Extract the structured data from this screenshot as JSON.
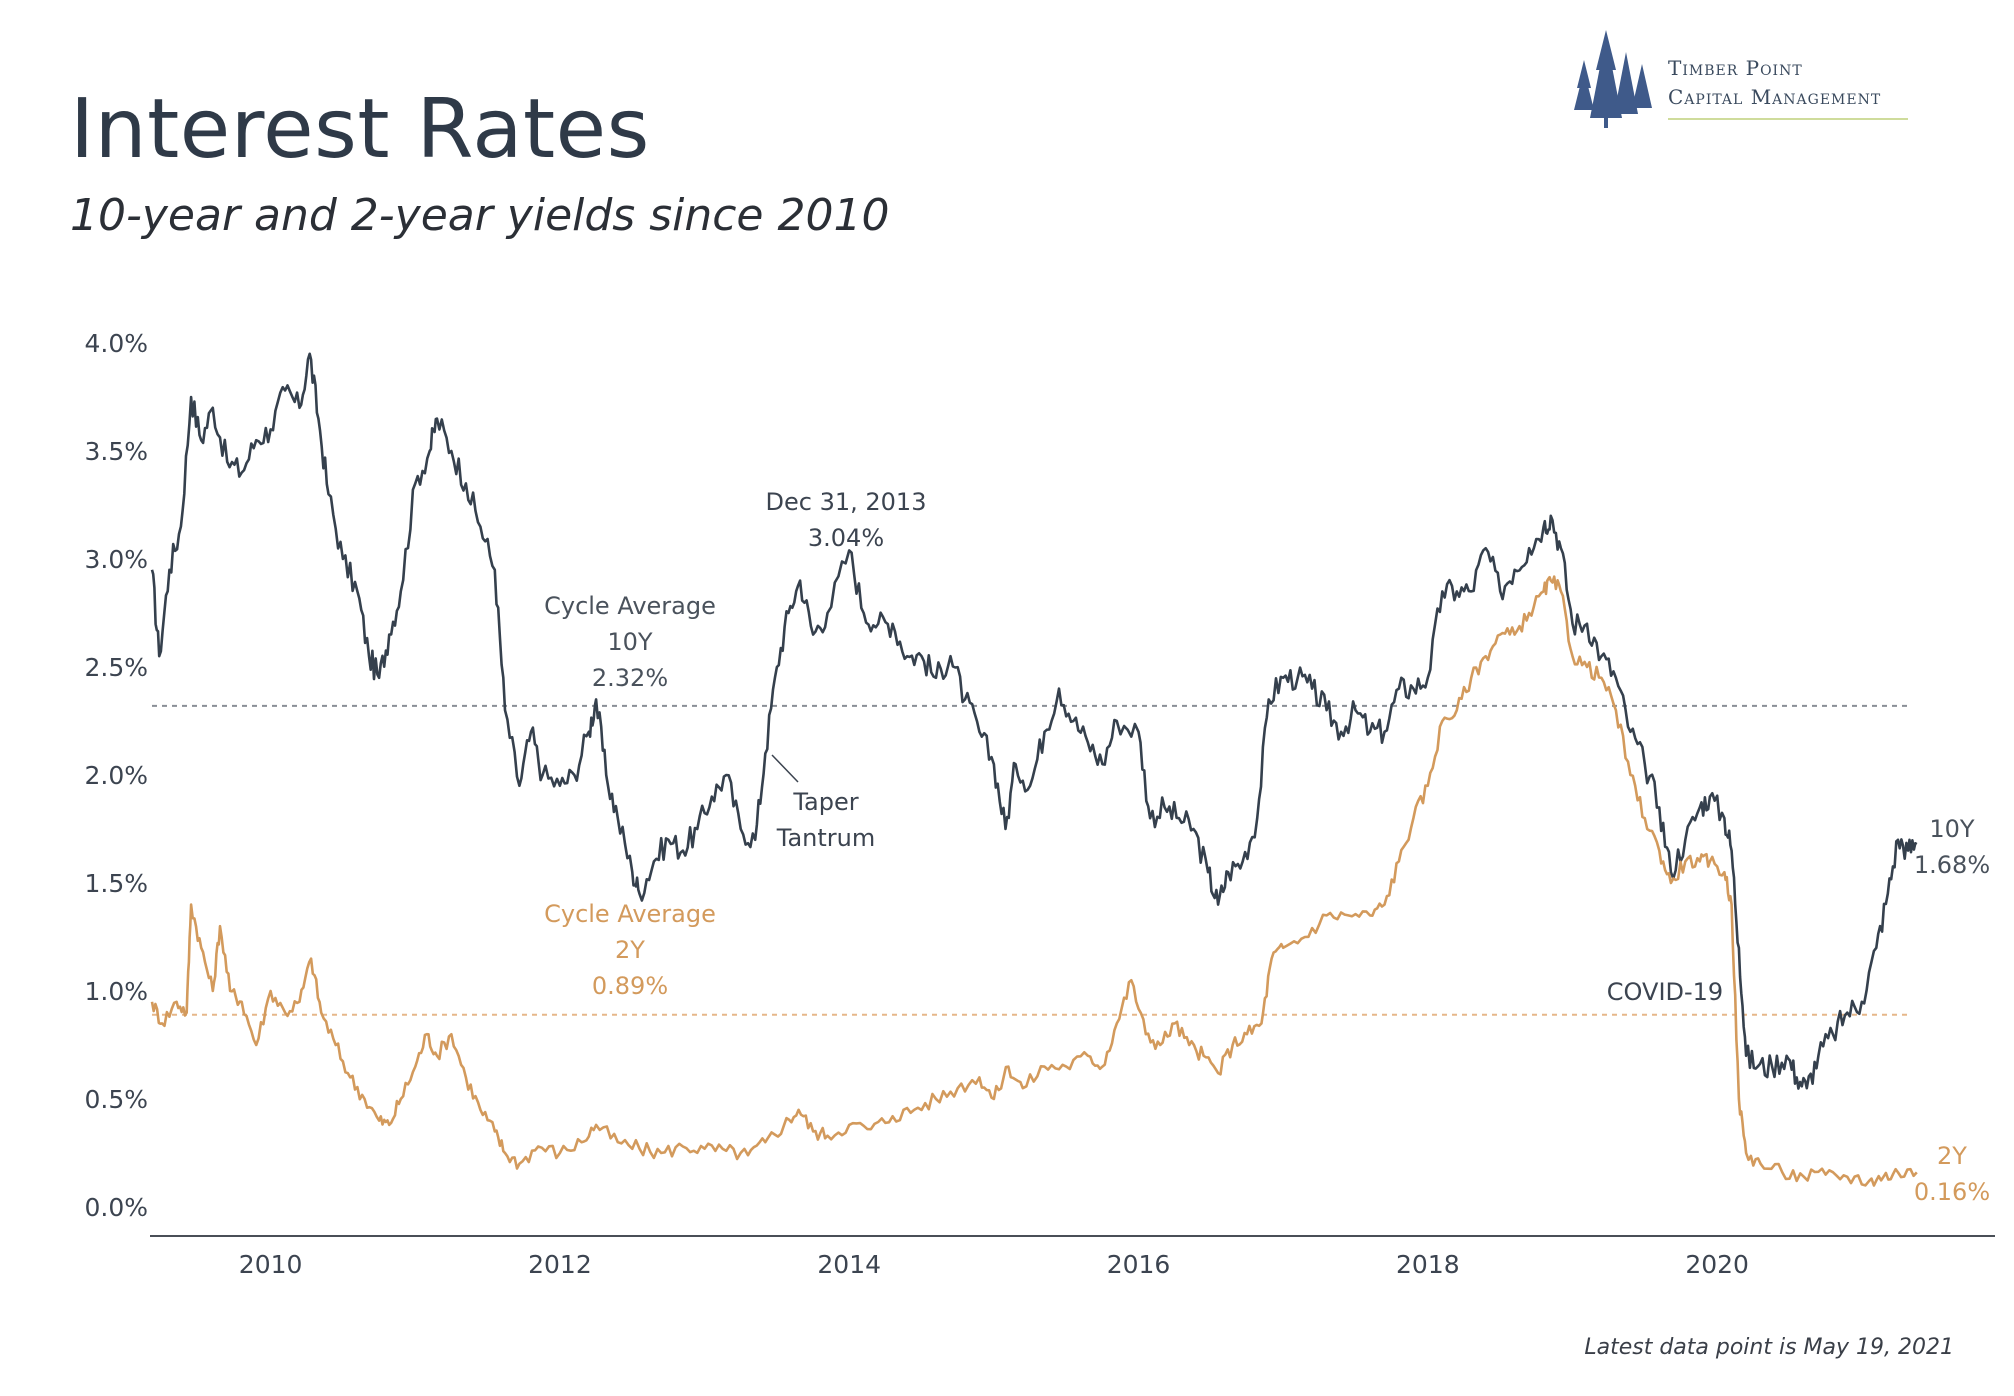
{
  "header": {
    "title": "Interest Rates",
    "subtitle": "10-year and 2-year yields since 2010"
  },
  "logo": {
    "line1": "Timber Point",
    "line2": "Capital Management",
    "icon": "pine-trees-icon"
  },
  "footnote": "Latest data point is May 19, 2021",
  "chart_data": {
    "type": "line",
    "xlabel": "",
    "ylabel": "",
    "x_ticks": [
      "2010",
      "2012",
      "2014",
      "2016",
      "2018",
      "2020"
    ],
    "y_ticks": [
      "0.0%",
      "0.5%",
      "1.0%",
      "1.5%",
      "2.0%",
      "2.5%",
      "3.0%",
      "3.5%",
      "4.0%"
    ],
    "ylim": [
      0,
      4
    ],
    "xlim": [
      2009.18,
      2021.9
    ],
    "grid": false,
    "colors": {
      "ten_year": "#35404d",
      "two_year": "#d39a5c",
      "avg10": "#8a8f96",
      "avg2": "#e6b78a"
    },
    "reference_lines": [
      {
        "series": "10Y",
        "value": 2.32
      },
      {
        "series": "2Y",
        "value": 0.89
      }
    ],
    "series": [
      {
        "name": "10Y",
        "end_label": "10Y",
        "end_value_label": "1.68%",
        "points": [
          [
            2009.18,
            2.95
          ],
          [
            2009.23,
            2.55
          ],
          [
            2009.3,
            2.95
          ],
          [
            2009.38,
            3.15
          ],
          [
            2009.45,
            3.75
          ],
          [
            2009.52,
            3.55
          ],
          [
            2009.6,
            3.7
          ],
          [
            2009.7,
            3.45
          ],
          [
            2009.8,
            3.4
          ],
          [
            2009.9,
            3.55
          ],
          [
            2010.0,
            3.6
          ],
          [
            2010.1,
            3.78
          ],
          [
            2010.2,
            3.7
          ],
          [
            2010.27,
            3.95
          ],
          [
            2010.33,
            3.65
          ],
          [
            2010.4,
            3.3
          ],
          [
            2010.5,
            3.0
          ],
          [
            2010.6,
            2.85
          ],
          [
            2010.68,
            2.55
          ],
          [
            2010.75,
            2.45
          ],
          [
            2010.82,
            2.65
          ],
          [
            2010.9,
            2.85
          ],
          [
            2011.0,
            3.35
          ],
          [
            2011.1,
            3.5
          ],
          [
            2011.15,
            3.65
          ],
          [
            2011.25,
            3.5
          ],
          [
            2011.35,
            3.35
          ],
          [
            2011.45,
            3.15
          ],
          [
            2011.55,
            2.95
          ],
          [
            2011.62,
            2.3
          ],
          [
            2011.72,
            1.95
          ],
          [
            2011.8,
            2.2
          ],
          [
            2011.88,
            2.0
          ],
          [
            2012.0,
            1.95
          ],
          [
            2012.1,
            2.0
          ],
          [
            2012.2,
            2.2
          ],
          [
            2012.25,
            2.35
          ],
          [
            2012.32,
            2.0
          ],
          [
            2012.4,
            1.8
          ],
          [
            2012.5,
            1.55
          ],
          [
            2012.55,
            1.45
          ],
          [
            2012.65,
            1.6
          ],
          [
            2012.75,
            1.7
          ],
          [
            2012.85,
            1.65
          ],
          [
            2012.95,
            1.75
          ],
          [
            2013.05,
            1.9
          ],
          [
            2013.15,
            2.0
          ],
          [
            2013.25,
            1.75
          ],
          [
            2013.35,
            1.7
          ],
          [
            2013.42,
            2.1
          ],
          [
            2013.5,
            2.5
          ],
          [
            2013.58,
            2.75
          ],
          [
            2013.66,
            2.9
          ],
          [
            2013.75,
            2.65
          ],
          [
            2013.85,
            2.75
          ],
          [
            2014.0,
            3.04
          ],
          [
            2014.1,
            2.75
          ],
          [
            2014.2,
            2.7
          ],
          [
            2014.3,
            2.7
          ],
          [
            2014.4,
            2.55
          ],
          [
            2014.5,
            2.55
          ],
          [
            2014.6,
            2.45
          ],
          [
            2014.7,
            2.55
          ],
          [
            2014.8,
            2.35
          ],
          [
            2014.9,
            2.2
          ],
          [
            2015.0,
            2.05
          ],
          [
            2015.08,
            1.75
          ],
          [
            2015.15,
            2.05
          ],
          [
            2015.25,
            1.95
          ],
          [
            2015.35,
            2.2
          ],
          [
            2015.45,
            2.4
          ],
          [
            2015.55,
            2.25
          ],
          [
            2015.65,
            2.15
          ],
          [
            2015.75,
            2.05
          ],
          [
            2015.85,
            2.25
          ],
          [
            2016.0,
            2.2
          ],
          [
            2016.08,
            1.8
          ],
          [
            2016.18,
            1.85
          ],
          [
            2016.28,
            1.8
          ],
          [
            2016.38,
            1.75
          ],
          [
            2016.48,
            1.55
          ],
          [
            2016.55,
            1.4
          ],
          [
            2016.62,
            1.55
          ],
          [
            2016.72,
            1.6
          ],
          [
            2016.82,
            1.8
          ],
          [
            2016.9,
            2.35
          ],
          [
            2017.0,
            2.45
          ],
          [
            2017.1,
            2.45
          ],
          [
            2017.2,
            2.4
          ],
          [
            2017.3,
            2.3
          ],
          [
            2017.4,
            2.2
          ],
          [
            2017.5,
            2.3
          ],
          [
            2017.6,
            2.2
          ],
          [
            2017.7,
            2.2
          ],
          [
            2017.8,
            2.4
          ],
          [
            2017.9,
            2.4
          ],
          [
            2018.0,
            2.45
          ],
          [
            2018.1,
            2.85
          ],
          [
            2018.2,
            2.85
          ],
          [
            2018.3,
            2.85
          ],
          [
            2018.4,
            3.05
          ],
          [
            2018.5,
            2.85
          ],
          [
            2018.6,
            2.95
          ],
          [
            2018.7,
            3.05
          ],
          [
            2018.8,
            3.15
          ],
          [
            2018.85,
            3.2
          ],
          [
            2018.92,
            3.05
          ],
          [
            2019.0,
            2.7
          ],
          [
            2019.1,
            2.7
          ],
          [
            2019.2,
            2.55
          ],
          [
            2019.3,
            2.45
          ],
          [
            2019.4,
            2.2
          ],
          [
            2019.5,
            2.05
          ],
          [
            2019.6,
            1.85
          ],
          [
            2019.68,
            1.55
          ],
          [
            2019.78,
            1.7
          ],
          [
            2019.88,
            1.85
          ],
          [
            2019.95,
            1.9
          ],
          [
            2020.05,
            1.8
          ],
          [
            2020.1,
            1.65
          ],
          [
            2020.15,
            1.2
          ],
          [
            2020.2,
            0.7
          ],
          [
            2020.28,
            0.65
          ],
          [
            2020.38,
            0.65
          ],
          [
            2020.48,
            0.7
          ],
          [
            2020.55,
            0.6
          ],
          [
            2020.62,
            0.55
          ],
          [
            2020.7,
            0.7
          ],
          [
            2020.8,
            0.8
          ],
          [
            2020.9,
            0.9
          ],
          [
            2021.0,
            0.95
          ],
          [
            2021.1,
            1.2
          ],
          [
            2021.18,
            1.45
          ],
          [
            2021.25,
            1.7
          ],
          [
            2021.32,
            1.65
          ],
          [
            2021.38,
            1.68
          ]
        ]
      },
      {
        "name": "2Y",
        "end_label": "2Y",
        "end_value_label": "0.16%",
        "points": [
          [
            2009.18,
            0.95
          ],
          [
            2009.25,
            0.85
          ],
          [
            2009.35,
            0.95
          ],
          [
            2009.42,
            0.9
          ],
          [
            2009.45,
            1.4
          ],
          [
            2009.52,
            1.2
          ],
          [
            2009.6,
            1.0
          ],
          [
            2009.65,
            1.3
          ],
          [
            2009.72,
            1.0
          ],
          [
            2009.8,
            0.95
          ],
          [
            2009.9,
            0.75
          ],
          [
            2010.0,
            1.0
          ],
          [
            2010.1,
            0.9
          ],
          [
            2010.2,
            0.95
          ],
          [
            2010.28,
            1.15
          ],
          [
            2010.35,
            0.9
          ],
          [
            2010.45,
            0.75
          ],
          [
            2010.55,
            0.6
          ],
          [
            2010.65,
            0.5
          ],
          [
            2010.75,
            0.4
          ],
          [
            2010.82,
            0.38
          ],
          [
            2010.9,
            0.5
          ],
          [
            2011.0,
            0.65
          ],
          [
            2011.08,
            0.8
          ],
          [
            2011.15,
            0.7
          ],
          [
            2011.25,
            0.8
          ],
          [
            2011.35,
            0.6
          ],
          [
            2011.45,
            0.45
          ],
          [
            2011.55,
            0.35
          ],
          [
            2011.62,
            0.25
          ],
          [
            2011.72,
            0.2
          ],
          [
            2011.85,
            0.28
          ],
          [
            2012.0,
            0.25
          ],
          [
            2012.15,
            0.3
          ],
          [
            2012.25,
            0.38
          ],
          [
            2012.4,
            0.3
          ],
          [
            2012.55,
            0.27
          ],
          [
            2012.7,
            0.25
          ],
          [
            2012.85,
            0.28
          ],
          [
            2013.0,
            0.27
          ],
          [
            2013.15,
            0.26
          ],
          [
            2013.3,
            0.24
          ],
          [
            2013.42,
            0.3
          ],
          [
            2013.55,
            0.38
          ],
          [
            2013.65,
            0.45
          ],
          [
            2013.75,
            0.35
          ],
          [
            2013.85,
            0.33
          ],
          [
            2014.0,
            0.38
          ],
          [
            2014.15,
            0.36
          ],
          [
            2014.3,
            0.42
          ],
          [
            2014.45,
            0.45
          ],
          [
            2014.6,
            0.5
          ],
          [
            2014.75,
            0.55
          ],
          [
            2014.9,
            0.6
          ],
          [
            2015.0,
            0.5
          ],
          [
            2015.1,
            0.65
          ],
          [
            2015.2,
            0.55
          ],
          [
            2015.35,
            0.65
          ],
          [
            2015.5,
            0.65
          ],
          [
            2015.65,
            0.7
          ],
          [
            2015.75,
            0.65
          ],
          [
            2015.85,
            0.85
          ],
          [
            2015.95,
            1.05
          ],
          [
            2016.05,
            0.8
          ],
          [
            2016.15,
            0.75
          ],
          [
            2016.25,
            0.85
          ],
          [
            2016.35,
            0.75
          ],
          [
            2016.45,
            0.7
          ],
          [
            2016.55,
            0.62
          ],
          [
            2016.65,
            0.75
          ],
          [
            2016.75,
            0.8
          ],
          [
            2016.85,
            0.85
          ],
          [
            2016.92,
            1.15
          ],
          [
            2017.0,
            1.2
          ],
          [
            2017.15,
            1.25
          ],
          [
            2017.3,
            1.35
          ],
          [
            2017.45,
            1.35
          ],
          [
            2017.6,
            1.35
          ],
          [
            2017.7,
            1.4
          ],
          [
            2017.8,
            1.6
          ],
          [
            2017.9,
            1.8
          ],
          [
            2018.0,
            1.95
          ],
          [
            2018.1,
            2.25
          ],
          [
            2018.2,
            2.3
          ],
          [
            2018.3,
            2.45
          ],
          [
            2018.4,
            2.55
          ],
          [
            2018.5,
            2.65
          ],
          [
            2018.6,
            2.65
          ],
          [
            2018.7,
            2.75
          ],
          [
            2018.8,
            2.85
          ],
          [
            2018.85,
            2.9
          ],
          [
            2018.92,
            2.85
          ],
          [
            2019.0,
            2.55
          ],
          [
            2019.1,
            2.5
          ],
          [
            2019.2,
            2.45
          ],
          [
            2019.3,
            2.3
          ],
          [
            2019.4,
            2.0
          ],
          [
            2019.5,
            1.8
          ],
          [
            2019.6,
            1.65
          ],
          [
            2019.68,
            1.5
          ],
          [
            2019.78,
            1.6
          ],
          [
            2019.88,
            1.6
          ],
          [
            2019.95,
            1.6
          ],
          [
            2020.05,
            1.55
          ],
          [
            2020.1,
            1.4
          ],
          [
            2020.15,
            0.5
          ],
          [
            2020.2,
            0.25
          ],
          [
            2020.3,
            0.2
          ],
          [
            2020.45,
            0.16
          ],
          [
            2020.6,
            0.14
          ],
          [
            2020.75,
            0.15
          ],
          [
            2020.9,
            0.14
          ],
          [
            2021.05,
            0.12
          ],
          [
            2021.15,
            0.14
          ],
          [
            2021.25,
            0.16
          ],
          [
            2021.38,
            0.16
          ]
        ]
      }
    ],
    "annotations": {
      "cycle_avg_10y": {
        "line1": "Cycle Average",
        "line2": "10Y",
        "line3": "2.32%"
      },
      "cycle_avg_2y": {
        "line1": "Cycle Average",
        "line2": "2Y",
        "line3": "0.89%"
      },
      "peak": {
        "line1": "Dec 31, 2013",
        "line2": "3.04%"
      },
      "taper": {
        "line1": "Taper",
        "line2": "Tantrum"
      },
      "covid": "COVID-19"
    }
  }
}
